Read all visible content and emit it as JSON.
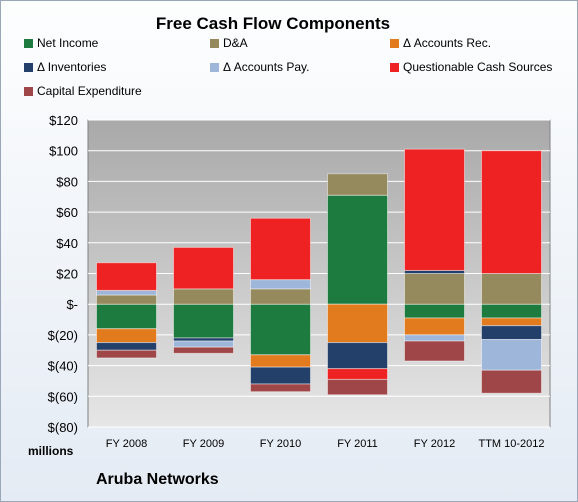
{
  "chart_data": {
    "type": "bar",
    "stacked": true,
    "title": "Free Cash Flow Components",
    "xlabel": "",
    "ylabel": "",
    "units_label": "millions",
    "company": "Aruba Networks",
    "categories": [
      "FY 2008",
      "FY 2009",
      "FY 2010",
      "FY 2011",
      "FY 2012",
      "TTM 10-2012"
    ],
    "ylim": [
      -80,
      120
    ],
    "yticks": [
      120,
      100,
      80,
      60,
      40,
      20,
      0,
      -20,
      -40,
      -60,
      -80
    ],
    "ytick_labels": [
      "$120",
      "$100",
      "$80",
      "$60",
      "$40",
      "$20",
      "$-",
      "$(20)",
      "$(40)",
      "$(60)",
      "$(80)"
    ],
    "legend_position": "top",
    "grid": true,
    "series": [
      {
        "name": "Net Income",
        "color": "#1e7b3f",
        "values": [
          -16,
          -22,
          -33,
          71,
          -9,
          -9
        ]
      },
      {
        "name": "D&A",
        "color": "#958a5e",
        "values": [
          6,
          10,
          10,
          14,
          20,
          20
        ]
      },
      {
        "name": "Δ Accounts Rec.",
        "color": "#e27a1e",
        "values": [
          -9,
          0,
          -8,
          -25,
          -11,
          -5
        ]
      },
      {
        "name": "Δ Inventories",
        "color": "#23406b",
        "values": [
          -5,
          -2,
          -11,
          -17,
          2,
          -9
        ]
      },
      {
        "name": "Δ Accounts Pay.",
        "color": "#9db6d9",
        "values": [
          3,
          -4,
          6,
          0,
          -4,
          -20
        ]
      },
      {
        "name": "Questionable Cash Sources",
        "color": "#ee2222",
        "values": [
          18,
          27,
          40,
          -7,
          79,
          80
        ]
      },
      {
        "name": "Capital Expenditure",
        "color": "#9e4648",
        "values": [
          -5,
          -4,
          -5,
          -10,
          -13,
          -15
        ]
      }
    ]
  }
}
